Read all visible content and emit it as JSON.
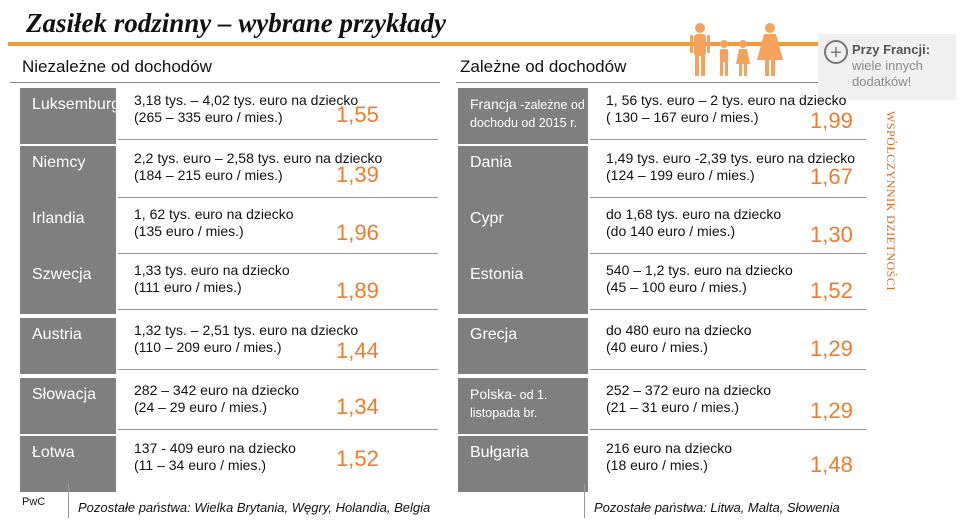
{
  "title": "Zasiłek rodzinny – wybrane przykłady",
  "left_header": "Niezależne od dochodów",
  "right_header": "Zależne od dochodów",
  "side_label": "WSPÓŁCZYNNIK DZIETNOŚCI",
  "note": {
    "bold": "Przy Francji:",
    "text": " wiele innych dodatków!"
  },
  "left_rows": [
    {
      "country": "Luksemburg",
      "line1": "3,18 tys. – 4,02 tys. euro na dziecko",
      "line2": "(265 – 335 euro / mies.)",
      "value": "1,55"
    },
    {
      "country": "Niemcy",
      "line1": "2,2 tys. euro – 2,58 tys. euro na dziecko",
      "line2": "(184 – 215 euro / mies.)",
      "value": "1,39"
    },
    {
      "country": "Irlandia",
      "line1": "1, 62 tys. euro na dziecko",
      "line2": "(135 euro / mies.)",
      "value": "1,96"
    },
    {
      "country": "Szwecja",
      "line1": "1,33 tys. euro na dziecko",
      "line2": "(111 euro / mies.)",
      "value": "1,89"
    },
    {
      "country": "Austria",
      "line1": "1,32 tys. – 2,51 tys. euro na dziecko",
      "line2": "(110 – 209 euro / mies.)",
      "value": "1,44"
    },
    {
      "country": "Słowacja",
      "line1": "282 – 342 euro  na dziecko",
      "line2": "(24 – 29 euro / mies.)",
      "value": "1,34"
    },
    {
      "country": "Łotwa",
      "line1": "137  - 409 euro na dziecko",
      "line2": "(11 – 34 euro / mies.)",
      "value": "1,52"
    }
  ],
  "right_rows": [
    {
      "country": "Francja",
      "country_sub": " -zależne od dochodu od 2015 r.",
      "line1": "1, 56 tys. euro – 2 tys. euro na dziecko",
      "line2": "( 130 – 167 euro / mies.)",
      "value": "1,99"
    },
    {
      "country": "Dania",
      "country_sub": "",
      "line1": "1,49 tys. euro -2,39 tys. euro na dziecko",
      "line2": "(124 – 199 euro / mies.)",
      "value": "1,67"
    },
    {
      "country": "Cypr",
      "country_sub": "",
      "line1": "do 1,68 tys. euro na dziecko",
      "line2": "(do 140 euro / mies.)",
      "value": "1,30"
    },
    {
      "country": "Estonia",
      "country_sub": "",
      "line1": "540 – 1,2 tys. euro na dziecko",
      "line2": "(45 – 100 euro / mies.)",
      "value": "1,52"
    },
    {
      "country": "Grecja",
      "country_sub": "",
      "line1": "do 480 euro na dziecko",
      "line2": "(40 euro / mies.)",
      "value": "1,29"
    },
    {
      "country": "Polska",
      "country_sub": "- od 1. listopada br.",
      "line1": "252 – 372 euro na dziecko",
      "line2": "(21 – 31 euro / mies.)",
      "value": "1,29"
    },
    {
      "country": "Bułgaria",
      "country_sub": "",
      "line1": "216 euro na dziecko",
      "line2": "(18 euro / mies.)",
      "value": "1,48"
    }
  ],
  "footer_left": "Pozostałe państwa: Wielka Brytania, Węgry, Holandia, Belgia",
  "footer_right": "Pozostałe państwa: Litwa, Malta, Słowenia",
  "brand": "PwC",
  "icons": {
    "family": "family-icon",
    "plus": "plus-circle-icon"
  },
  "colors": {
    "accent": "#f07c2b",
    "country_bg": "#7f7f7f"
  }
}
